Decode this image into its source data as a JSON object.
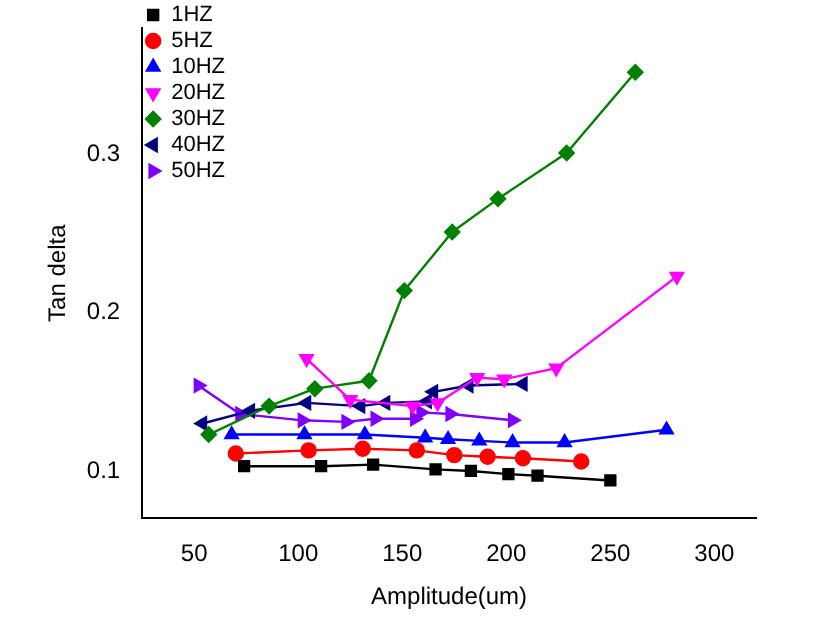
{
  "chart_data": {
    "type": "line",
    "xlabel": "Amplitude(um)",
    "ylabel": "Tan delta",
    "xlim": [
      25,
      320
    ],
    "xticks": [
      50,
      100,
      150,
      200,
      250,
      300
    ],
    "ylim": [
      0.07,
      0.38
    ],
    "yticks": [
      0.1,
      0.2,
      0.3
    ],
    "grid": false,
    "legend": "top left",
    "line_style": "solid",
    "series": [
      {
        "name": "1HZ",
        "color": "#000000",
        "marker": "square",
        "x": [
          74,
          111,
          136,
          166,
          183,
          201,
          215,
          250
        ],
        "values": [
          0.103,
          0.103,
          0.104,
          0.101,
          0.1,
          0.098,
          0.097,
          0.094
        ]
      },
      {
        "name": "5HZ",
        "color": "#ff0000",
        "marker": "circle",
        "x": [
          70,
          105,
          131,
          157,
          175,
          191,
          208,
          236
        ],
        "values": [
          0.111,
          0.113,
          0.114,
          0.113,
          0.11,
          0.109,
          0.108,
          0.106
        ]
      },
      {
        "name": "10HZ",
        "color": "#0000ff",
        "marker": "triangle",
        "x": [
          68,
          103,
          132,
          161,
          172,
          187,
          203,
          228,
          277
        ],
        "values": [
          0.123,
          0.123,
          0.123,
          0.121,
          0.12,
          0.119,
          0.118,
          0.118,
          0.126
        ]
      },
      {
        "name": "20HZ",
        "color": "#ff00ff",
        "marker": "triangle-down",
        "x": [
          104,
          125,
          155,
          167,
          186,
          199,
          224,
          282
        ],
        "values": [
          0.171,
          0.145,
          0.141,
          0.143,
          0.159,
          0.158,
          0.165,
          0.223
        ]
      },
      {
        "name": "30HZ",
        "color": "#008000",
        "marker": "diamond",
        "x": [
          57,
          86,
          108,
          134,
          151,
          174,
          196,
          229,
          262
        ],
        "values": [
          0.123,
          0.141,
          0.152,
          0.157,
          0.214,
          0.251,
          0.272,
          0.301,
          0.352
        ]
      },
      {
        "name": "40HZ",
        "color": "#000080",
        "marker": "triangle-left",
        "x": [
          54,
          77,
          104,
          130,
          142,
          162,
          165,
          182,
          208
        ],
        "values": [
          0.13,
          0.138,
          0.143,
          0.141,
          0.143,
          0.144,
          0.15,
          0.154,
          0.155
        ]
      },
      {
        "name": "50HZ",
        "color": "#8000ff",
        "marker": "triangle-right",
        "x": [
          52,
          72,
          102,
          123,
          137,
          156,
          159,
          173,
          203
        ],
        "values": [
          0.154,
          0.136,
          0.132,
          0.131,
          0.133,
          0.133,
          0.137,
          0.136,
          0.132
        ]
      }
    ]
  }
}
